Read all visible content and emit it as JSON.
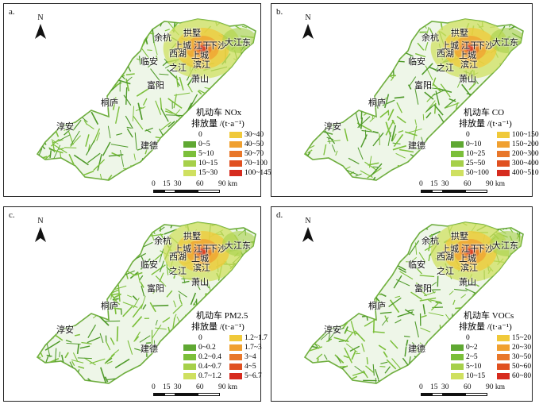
{
  "north_letter": "N",
  "places": [
    "余杭",
    "拱墅",
    "上城",
    "江干",
    "下沙",
    "大江东",
    "西湖",
    "上城",
    "滨江",
    "之江",
    "临安",
    "富阳",
    "萧山",
    "桐庐",
    "淳安",
    "建德"
  ],
  "scale": {
    "labels": [
      "0",
      "15",
      "30",
      "60",
      "90 km"
    ]
  },
  "panels": [
    {
      "label": "a.",
      "title1": "机动车 NOx",
      "title2": "排放量 /(t·a⁻¹)",
      "legend": [
        "0",
        "0~5",
        "5~10",
        "10~15",
        "15~30",
        "30~40",
        "40~50",
        "50~70",
        "70~100",
        "100~145"
      ]
    },
    {
      "label": "b.",
      "title1": "机动车 CO",
      "title2": "排放量 /(t·a⁻¹)",
      "legend": [
        "0",
        "0~10",
        "10~25",
        "25~50",
        "50~100",
        "100~150",
        "150~200",
        "200~300",
        "300~400",
        "400~510"
      ]
    },
    {
      "label": "c.",
      "title1": "机动车 PM2.5",
      "title2": "排放量 /(t·a⁻¹)",
      "legend": [
        "0",
        "0~0.2",
        "0.2~0.4",
        "0.4~0.7",
        "0.7~1.2",
        "1.2~1.7",
        "1.7~3",
        "3~4",
        "4~5",
        "5~6.7"
      ]
    },
    {
      "label": "d.",
      "title1": "机动车 VOCs",
      "title2": "排放量 /(t·a⁻¹)",
      "legend": [
        "0",
        "0~2",
        "2~5",
        "5~10",
        "10~15",
        "15~20",
        "20~30",
        "30~50",
        "50~60",
        "60~80"
      ]
    }
  ],
  "legend_colors": [
    "#ffffff",
    "#5fa832",
    "#7bbf3a",
    "#a6d04a",
    "#cfe060",
    "#f0c93a",
    "#f0a030",
    "#e8772a",
    "#e05020",
    "#d62b1e"
  ]
}
